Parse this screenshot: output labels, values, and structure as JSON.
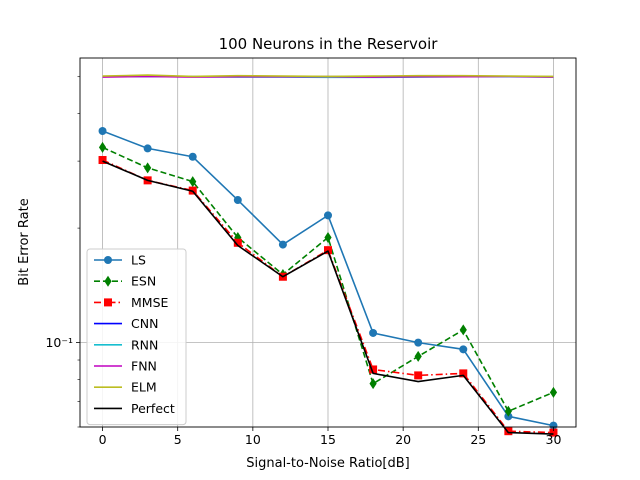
{
  "chart_data": {
    "type": "line",
    "title": "100 Neurons in the Reservoir",
    "xlabel": "Signal-to-Noise Ratio[dB]",
    "ylabel": "Bit Error Rate",
    "x": [
      0,
      3,
      6,
      9,
      12,
      15,
      18,
      21,
      24,
      27,
      30
    ],
    "xlim": [
      -1.5,
      31.5
    ],
    "ylim": [
      0.06,
      0.56
    ],
    "yscale": "log",
    "xticks": [
      0,
      5,
      10,
      15,
      20,
      25,
      30
    ],
    "xtick_labels": [
      "0",
      "5",
      "10",
      "15",
      "20",
      "25",
      "30"
    ],
    "yticks": [
      0.1
    ],
    "ytick_labels": [
      "10⁻¹"
    ],
    "grid": true,
    "legend_position": "lower-left",
    "series": [
      {
        "name": "LS",
        "color": "#1f77b4",
        "dash": "solid",
        "marker": "circle",
        "values": [
          0.36,
          0.324,
          0.308,
          0.237,
          0.181,
          0.216,
          0.106,
          0.1,
          0.096,
          0.064,
          0.0605
        ]
      },
      {
        "name": "ESN",
        "color": "#008000",
        "dash": "dashed",
        "marker": "diamond",
        "values": [
          0.326,
          0.288,
          0.265,
          0.189,
          0.151,
          0.189,
          0.078,
          0.092,
          0.108,
          0.066,
          0.074
        ]
      },
      {
        "name": "MMSE",
        "color": "#ff0000",
        "dash": "dashdot",
        "marker": "square",
        "values": [
          0.302,
          0.267,
          0.251,
          0.183,
          0.149,
          0.175,
          0.085,
          0.082,
          0.083,
          0.0585,
          0.058
        ]
      },
      {
        "name": "CNN",
        "color": "#0000ff",
        "dash": "solid",
        "marker": "none",
        "values": [
          0.5,
          0.503,
          0.5,
          0.5,
          0.5,
          0.5,
          0.5,
          0.5,
          0.5,
          0.5,
          0.5
        ]
      },
      {
        "name": "RNN",
        "color": "#17becf",
        "dash": "solid",
        "marker": "none",
        "values": [
          0.5,
          0.5,
          0.5,
          0.499,
          0.499,
          0.498,
          0.498,
          0.499,
          0.5,
          0.5,
          0.499
        ]
      },
      {
        "name": "FNN",
        "color": "#c000c0",
        "dash": "solid",
        "marker": "none",
        "values": [
          0.499,
          0.501,
          0.499,
          0.5,
          0.5,
          0.5,
          0.499,
          0.5,
          0.5,
          0.501,
          0.499
        ]
      },
      {
        "name": "ELM",
        "color": "#bcbd22",
        "dash": "solid",
        "marker": "none",
        "values": [
          0.502,
          0.505,
          0.501,
          0.503,
          0.502,
          0.501,
          0.502,
          0.503,
          0.503,
          0.502,
          0.501
        ]
      },
      {
        "name": "Perfect",
        "color": "#000000",
        "dash": "solid",
        "marker": "none",
        "values": [
          0.3,
          0.267,
          0.25,
          0.18,
          0.149,
          0.174,
          0.083,
          0.079,
          0.082,
          0.058,
          0.0575
        ]
      }
    ]
  }
}
